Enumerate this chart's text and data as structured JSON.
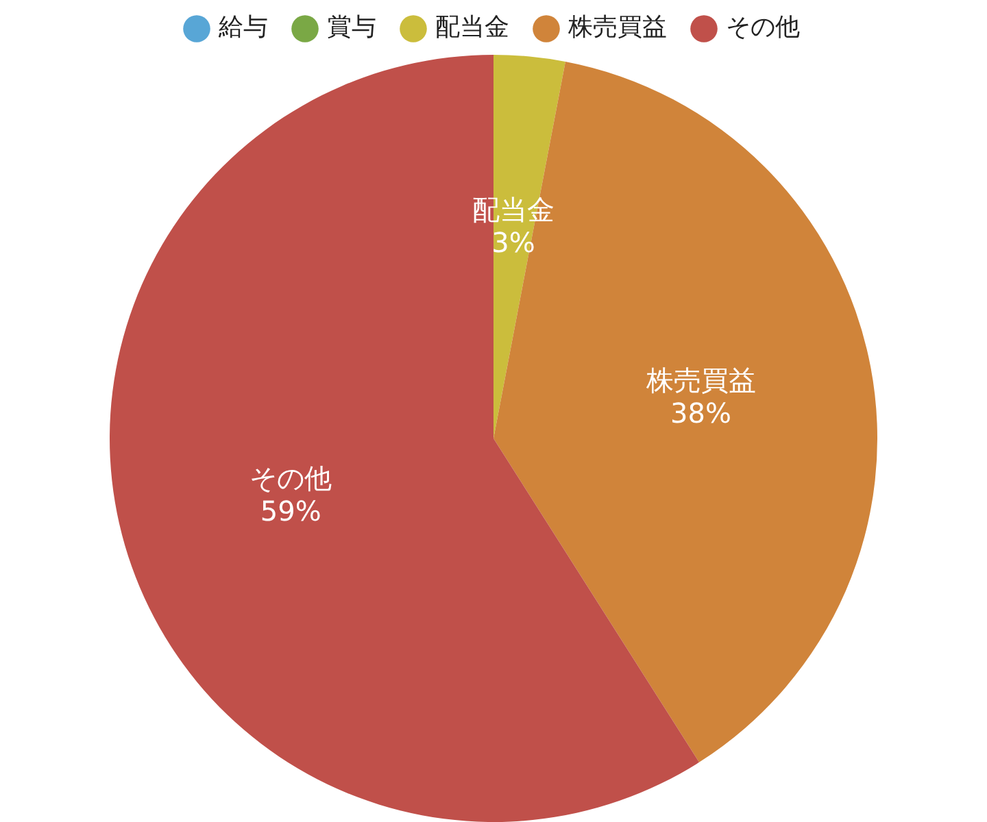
{
  "chart_data": {
    "type": "pie",
    "categories": [
      "給与",
      "賞与",
      "配当金",
      "株売買益",
      "その他"
    ],
    "values": [
      0,
      0,
      3,
      38,
      59
    ],
    "colors": [
      "#58a6d6",
      "#7aa845",
      "#cbbd3c",
      "#d0843a",
      "#c0504a"
    ],
    "legend": "top",
    "value_labels": [
      null,
      null,
      "3%",
      "38%",
      "59%"
    ]
  }
}
